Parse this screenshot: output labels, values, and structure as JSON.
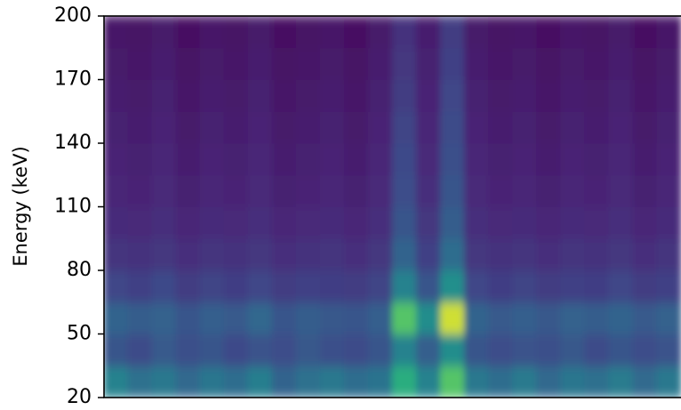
{
  "chart_data": {
    "type": "heatmap",
    "y_label": "Energy (keV)",
    "ylim": [
      20,
      200
    ],
    "yticks": [
      20,
      50,
      80,
      110,
      140,
      170,
      200
    ],
    "y_bins": [
      20,
      35,
      50,
      65,
      80,
      95,
      110,
      125,
      140,
      155,
      170,
      185,
      200
    ],
    "colormap": "viridis",
    "z": [
      [
        0.5,
        0.42,
        0.45,
        0.38,
        0.44,
        0.4,
        0.48,
        0.36,
        0.42,
        0.45,
        0.4,
        0.43,
        0.7,
        0.5,
        0.82,
        0.45,
        0.4,
        0.46,
        0.38,
        0.44,
        0.41,
        0.47,
        0.39,
        0.45
      ],
      [
        0.3,
        0.26,
        0.32,
        0.28,
        0.3,
        0.25,
        0.29,
        0.27,
        0.31,
        0.28,
        0.26,
        0.3,
        0.5,
        0.34,
        0.55,
        0.3,
        0.27,
        0.29,
        0.28,
        0.31,
        0.26,
        0.3,
        0.27,
        0.29
      ],
      [
        0.36,
        0.33,
        0.35,
        0.3,
        0.34,
        0.32,
        0.37,
        0.3,
        0.33,
        0.31,
        0.3,
        0.34,
        0.82,
        0.55,
        0.96,
        0.36,
        0.32,
        0.34,
        0.31,
        0.35,
        0.33,
        0.36,
        0.32,
        0.35
      ],
      [
        0.24,
        0.22,
        0.25,
        0.2,
        0.23,
        0.21,
        0.24,
        0.2,
        0.22,
        0.21,
        0.2,
        0.23,
        0.5,
        0.3,
        0.56,
        0.24,
        0.21,
        0.23,
        0.2,
        0.22,
        0.21,
        0.24,
        0.2,
        0.22
      ],
      [
        0.17,
        0.16,
        0.18,
        0.15,
        0.17,
        0.16,
        0.18,
        0.15,
        0.16,
        0.17,
        0.15,
        0.18,
        0.36,
        0.22,
        0.4,
        0.18,
        0.16,
        0.17,
        0.15,
        0.17,
        0.16,
        0.18,
        0.15,
        0.17
      ],
      [
        0.14,
        0.13,
        0.15,
        0.12,
        0.14,
        0.13,
        0.15,
        0.12,
        0.13,
        0.14,
        0.12,
        0.15,
        0.3,
        0.18,
        0.33,
        0.15,
        0.13,
        0.14,
        0.12,
        0.14,
        0.13,
        0.15,
        0.12,
        0.14
      ],
      [
        0.12,
        0.11,
        0.13,
        0.1,
        0.12,
        0.11,
        0.13,
        0.1,
        0.11,
        0.12,
        0.1,
        0.13,
        0.27,
        0.15,
        0.3,
        0.13,
        0.11,
        0.12,
        0.1,
        0.12,
        0.11,
        0.13,
        0.1,
        0.12
      ],
      [
        0.11,
        0.1,
        0.12,
        0.09,
        0.11,
        0.1,
        0.12,
        0.09,
        0.1,
        0.11,
        0.09,
        0.12,
        0.25,
        0.13,
        0.28,
        0.12,
        0.1,
        0.11,
        0.09,
        0.11,
        0.1,
        0.12,
        0.09,
        0.11
      ],
      [
        0.1,
        0.09,
        0.11,
        0.08,
        0.1,
        0.09,
        0.11,
        0.08,
        0.09,
        0.1,
        0.08,
        0.11,
        0.23,
        0.12,
        0.26,
        0.11,
        0.09,
        0.1,
        0.08,
        0.1,
        0.09,
        0.11,
        0.08,
        0.1
      ],
      [
        0.09,
        0.08,
        0.1,
        0.07,
        0.09,
        0.08,
        0.1,
        0.07,
        0.08,
        0.09,
        0.07,
        0.1,
        0.2,
        0.11,
        0.24,
        0.1,
        0.08,
        0.09,
        0.07,
        0.09,
        0.08,
        0.1,
        0.07,
        0.09
      ],
      [
        0.08,
        0.07,
        0.09,
        0.06,
        0.08,
        0.07,
        0.09,
        0.06,
        0.07,
        0.08,
        0.06,
        0.09,
        0.18,
        0.1,
        0.22,
        0.09,
        0.07,
        0.08,
        0.06,
        0.08,
        0.07,
        0.09,
        0.06,
        0.08
      ],
      [
        0.07,
        0.06,
        0.08,
        0.05,
        0.07,
        0.06,
        0.08,
        0.05,
        0.06,
        0.07,
        0.05,
        0.08,
        0.16,
        0.09,
        0.2,
        0.08,
        0.06,
        0.07,
        0.05,
        0.07,
        0.06,
        0.08,
        0.05,
        0.07
      ]
    ]
  }
}
